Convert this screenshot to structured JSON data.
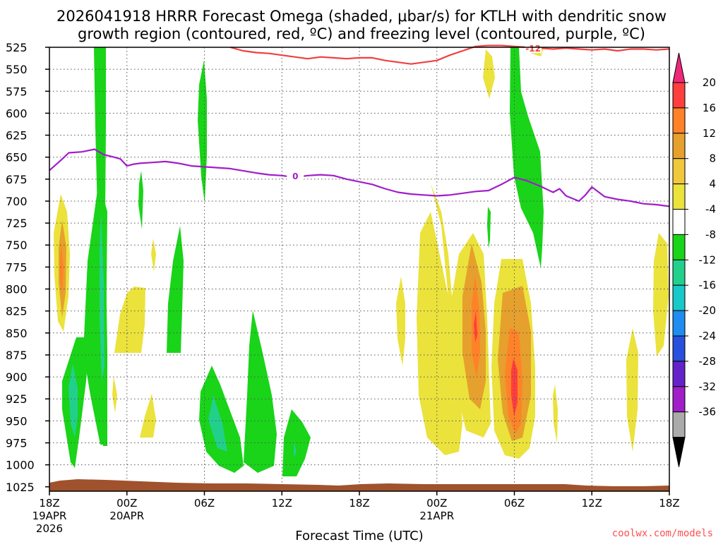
{
  "chart_data": {
    "type": "heatmap",
    "title_line1": "2026041918 HRRR Forecast Omega (shaded, μbar/s) for KTLH with dendritic snow",
    "title_line2": "growth region (contoured, red, ºC) and freezing level (contoured, purple, ºC)",
    "xlabel": "Forecast Time (UTC)",
    "credit": "coolwx.com/models",
    "x_range_hours": [
      0,
      48
    ],
    "y_range_mb": [
      525,
      1030
    ],
    "y_ticks": [
      525,
      550,
      575,
      600,
      625,
      650,
      675,
      700,
      725,
      750,
      775,
      800,
      825,
      850,
      875,
      900,
      925,
      950,
      975,
      1000,
      1025
    ],
    "y_tick_labels": [
      "525",
      "550",
      "575",
      "600",
      "625",
      "650",
      "675",
      "700",
      "725",
      "750",
      "775",
      "800",
      "825",
      "850",
      "875",
      "900",
      "925",
      "950",
      "975",
      "1000",
      "1025"
    ],
    "x_ticks": [
      {
        "hour": 0,
        "label": "18Z",
        "date": "19APR",
        "year": "2026"
      },
      {
        "hour": 6,
        "label": "00Z",
        "date": "20APR",
        "year": ""
      },
      {
        "hour": 12,
        "label": "06Z",
        "date": "",
        "year": ""
      },
      {
        "hour": 18,
        "label": "12Z",
        "date": "",
        "year": ""
      },
      {
        "hour": 24,
        "label": "18Z",
        "date": "",
        "year": ""
      },
      {
        "hour": 30,
        "label": "00Z",
        "date": "21APR",
        "year": ""
      },
      {
        "hour": 36,
        "label": "06Z",
        "date": "",
        "year": ""
      },
      {
        "hour": 42,
        "label": "12Z",
        "date": "",
        "year": ""
      },
      {
        "hour": 48,
        "label": "18Z",
        "date": "",
        "year": ""
      }
    ],
    "colorbar": {
      "levels": [
        "20",
        "16",
        "12",
        "8",
        "4",
        "-4",
        "-8",
        "-12",
        "-16",
        "-20",
        "-24",
        "-28",
        "-32",
        "-36"
      ],
      "colors": [
        "#ff3e3e",
        "#ff8228",
        "#e6a02d",
        "#f0c83c",
        "#ebe23c",
        "#ffffff",
        "#19d419",
        "#22d08c",
        "#19c8c8",
        "#1e8cf0",
        "#2850dc",
        "#6423c8",
        "#a01ec8",
        "#aaaaaa"
      ],
      "top_color": "#f0287a",
      "bottom_color": "#000000"
    },
    "freezing_level": {
      "label": "0",
      "color": "#a01ec8",
      "hours": [
        0,
        1,
        1.5,
        2.5,
        3.5,
        4.2,
        5,
        5.5,
        6,
        6.5,
        7,
        8,
        9,
        10,
        11,
        12,
        14,
        16,
        17,
        18,
        19,
        20,
        21,
        22,
        23,
        24,
        25,
        26,
        27,
        28,
        29,
        30,
        31,
        32,
        33,
        34,
        35,
        36,
        37,
        38,
        39,
        39.5,
        40,
        41,
        41.5,
        42,
        43,
        44,
        45,
        46,
        47,
        48
      ],
      "mb": [
        665,
        652,
        645,
        644,
        641,
        647,
        650,
        652,
        660,
        658,
        657,
        656,
        655,
        657,
        660,
        661,
        663,
        668,
        670,
        671,
        673,
        671,
        670,
        671,
        675,
        678,
        681,
        686,
        690,
        692,
        693,
        694,
        693,
        691,
        689,
        688,
        681,
        673,
        677,
        683,
        690,
        686,
        694,
        700,
        693,
        684,
        695,
        698,
        700,
        703,
        704,
        706
      ]
    },
    "dgz_contour": {
      "label": "-12",
      "color": "#f04040",
      "hours": [
        14,
        15,
        16,
        17,
        18,
        19,
        20,
        21,
        22,
        23,
        24,
        25,
        26,
        27,
        28,
        29,
        30,
        31,
        32,
        33,
        34,
        35,
        36,
        37,
        38,
        39,
        40,
        41,
        42,
        43,
        44,
        45,
        46,
        47,
        48
      ],
      "mb": [
        525,
        529,
        531,
        532,
        534,
        536,
        538,
        536,
        537,
        538,
        537,
        537,
        540,
        542,
        544,
        542,
        540,
        534,
        529,
        524,
        523,
        523,
        524,
        525,
        526,
        527,
        526,
        527,
        528,
        527,
        529,
        527,
        527,
        528,
        527
      ]
    }
  }
}
